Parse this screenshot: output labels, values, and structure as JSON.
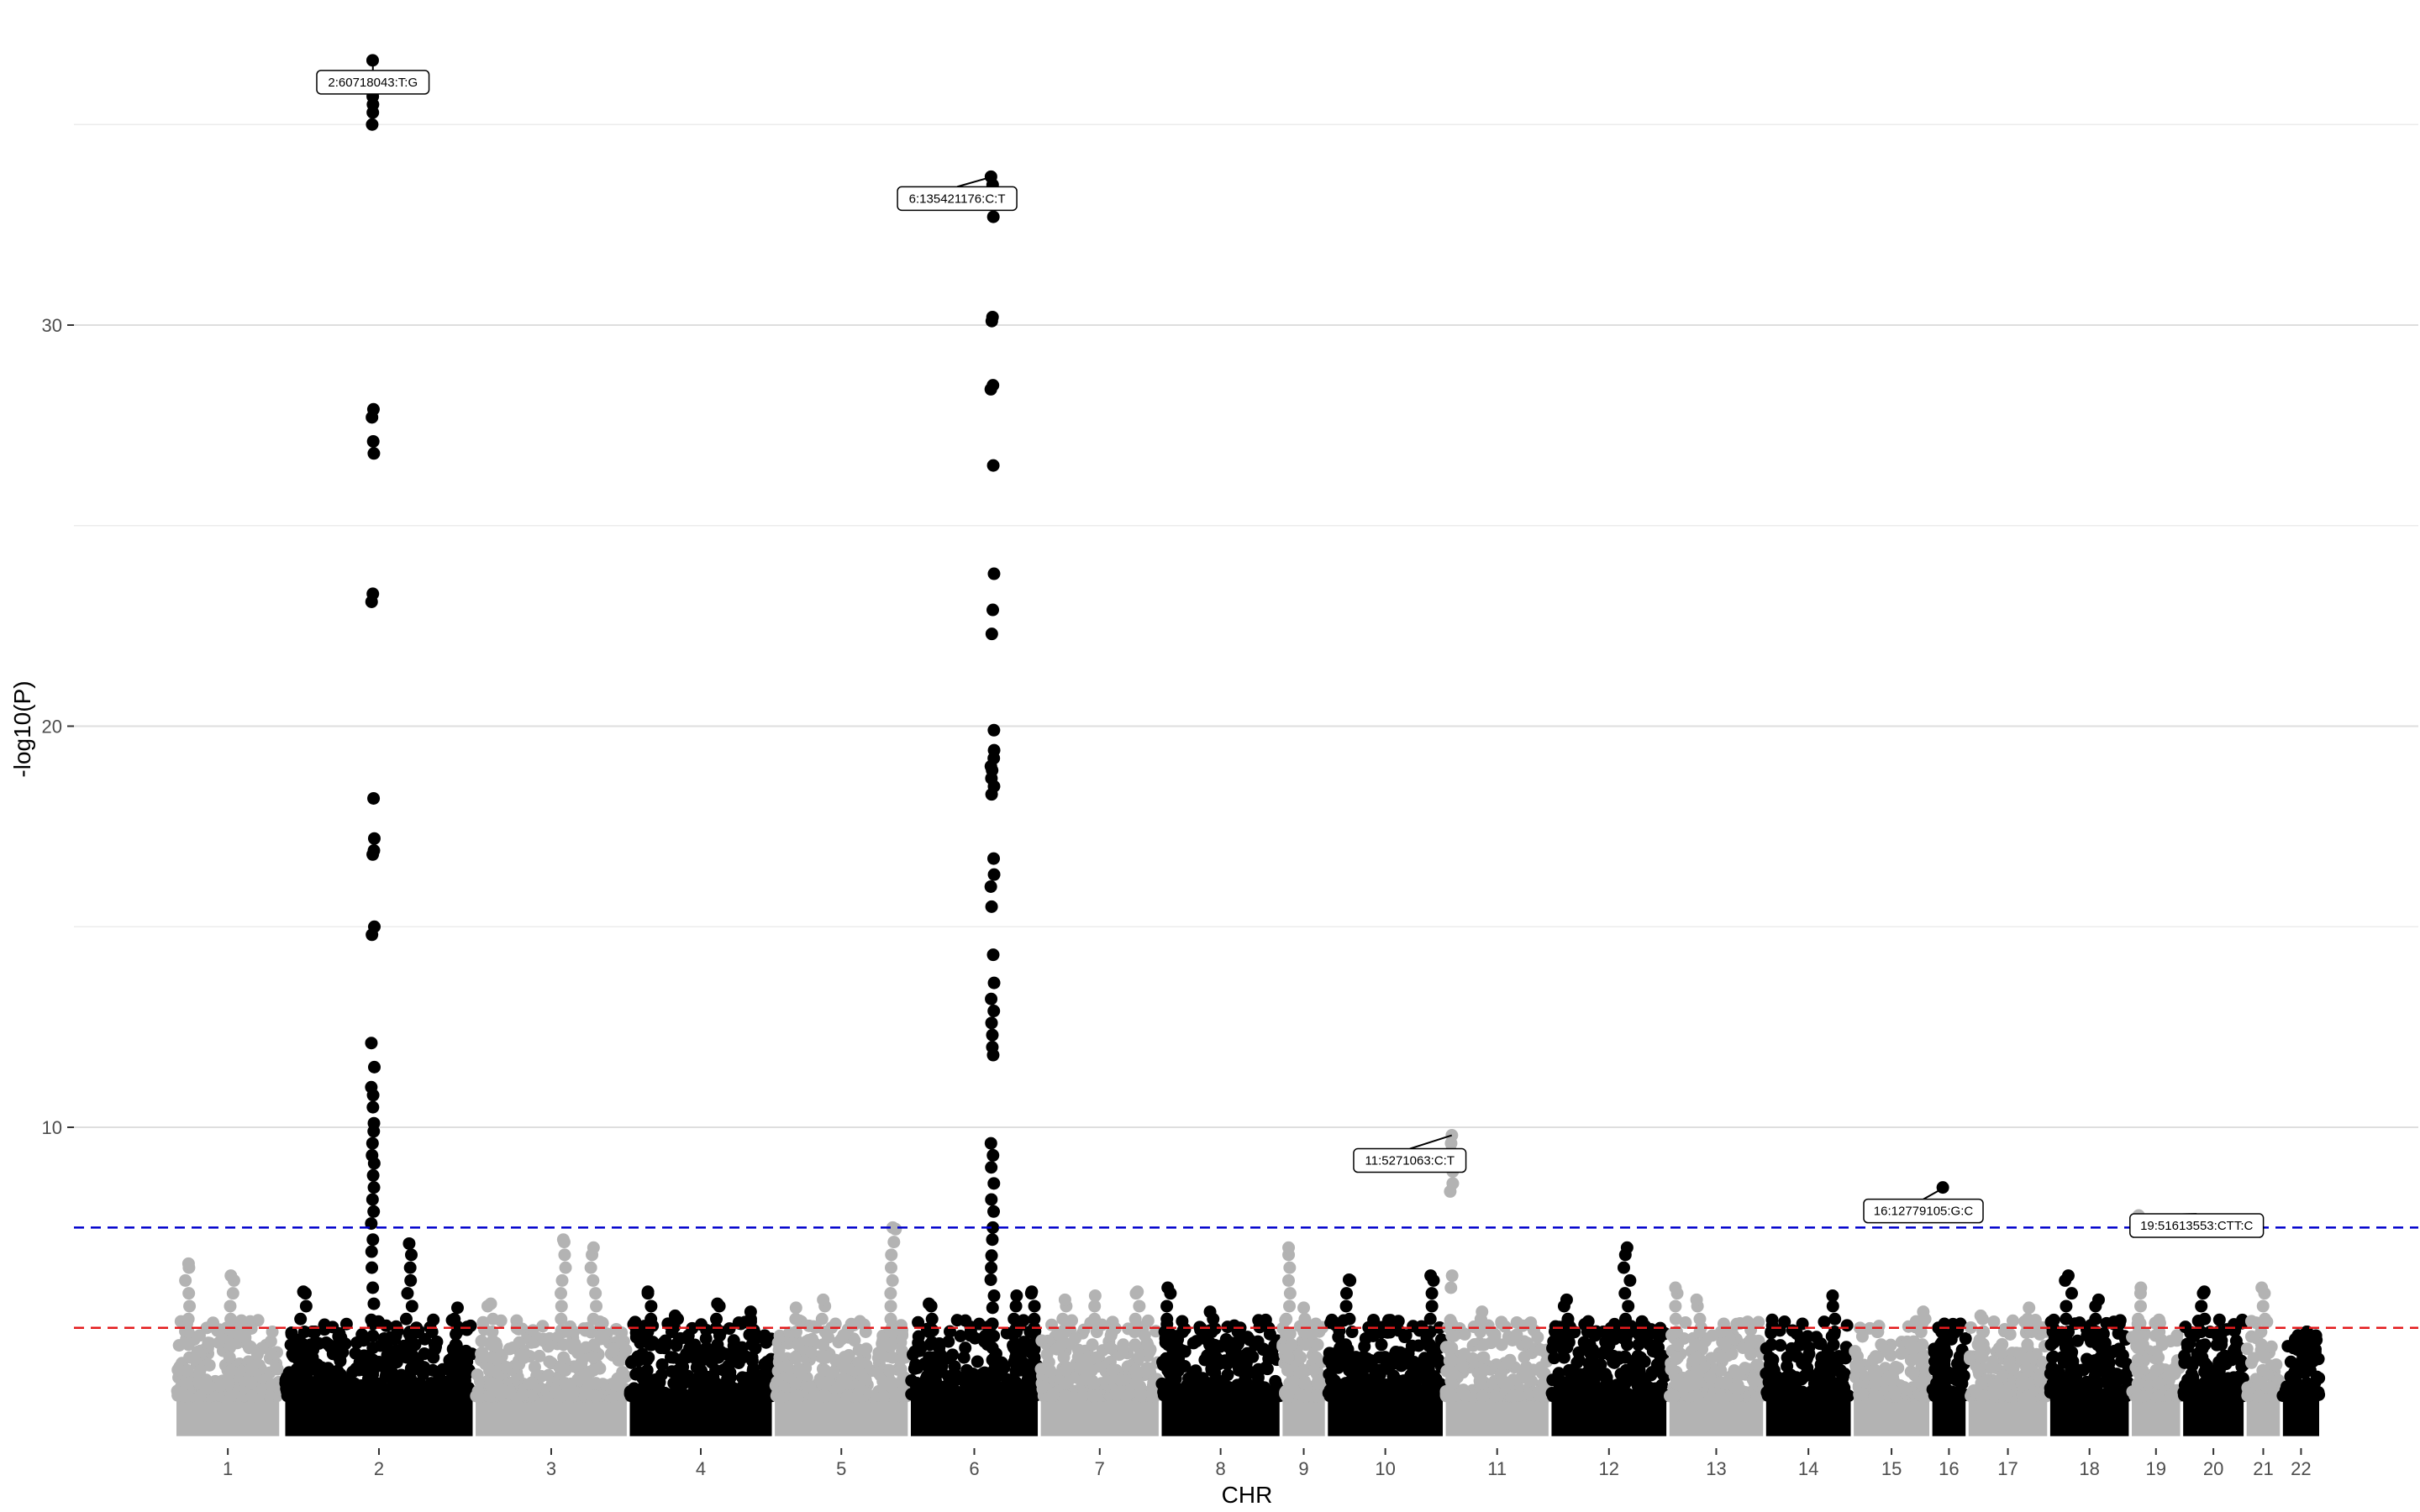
{
  "chart_data": {
    "type": "scatter",
    "subtype": "manhattan",
    "title": "",
    "xlabel": "CHR",
    "ylabel": "-log10(P)",
    "ylim": [
      2.3,
      36.6
    ],
    "yticks": [
      10,
      20,
      30
    ],
    "grid": "horizontal",
    "legend": "none",
    "colors": {
      "odd": "#b3b3b3",
      "even": "#000000",
      "suggestive_line": "#0000cc",
      "genomewide_line": "#e41a1c"
    },
    "suggestive_threshold": 7.5,
    "genomewide_threshold": 5.0,
    "chromosomes": [
      {
        "label": "1",
        "start": 0.0,
        "end": 3.4,
        "max": 6.6,
        "peaks": [
          [
            0.4,
            6.6
          ],
          [
            0.7,
            4.4
          ],
          [
            1.8,
            6.3
          ],
          [
            2.5,
            4.0
          ]
        ]
      },
      {
        "label": "2",
        "start": 3.6,
        "end": 9.8,
        "max": 36.6,
        "peaks": [
          [
            4.2,
            5.9
          ],
          [
            4.5,
            4.9
          ],
          [
            7.7,
            7.1
          ],
          [
            8.5,
            5.2
          ],
          [
            9.3,
            5.5
          ]
        ]
      },
      {
        "label": "3",
        "start": 9.9,
        "end": 14.9,
        "max": 7.2,
        "peaks": [
          [
            10.4,
            5.6
          ],
          [
            12.8,
            7.2
          ],
          [
            13.8,
            7.0
          ]
        ]
      },
      {
        "label": "4",
        "start": 15.0,
        "end": 19.7,
        "max": 5.9,
        "peaks": [
          [
            15.6,
            5.9
          ],
          [
            16.5,
            5.3
          ],
          [
            17.9,
            5.6
          ],
          [
            19.0,
            5.4
          ]
        ]
      },
      {
        "label": "5",
        "start": 19.8,
        "end": 24.2,
        "max": 7.5,
        "peaks": [
          [
            20.5,
            5.5
          ],
          [
            21.4,
            5.7
          ],
          [
            23.7,
            7.5
          ]
        ]
      },
      {
        "label": "6",
        "start": 24.3,
        "end": 28.5,
        "max": 33.7,
        "peaks": [
          [
            24.9,
            5.6
          ],
          [
            26.1,
            4.5
          ],
          [
            27.8,
            5.8
          ],
          [
            28.3,
            5.9
          ]
        ]
      },
      {
        "label": "7",
        "start": 28.6,
        "end": 32.5,
        "max": 5.8,
        "peaks": [
          [
            29.4,
            5.7
          ],
          [
            30.4,
            5.8
          ],
          [
            31.8,
            5.9
          ]
        ]
      },
      {
        "label": "8",
        "start": 32.6,
        "end": 36.5,
        "max": 6.0,
        "peaks": [
          [
            32.8,
            6.0
          ],
          [
            34.2,
            5.4
          ],
          [
            35.2,
            5.0
          ]
        ]
      },
      {
        "label": "9",
        "start": 36.6,
        "end": 38.0,
        "max": 7.0,
        "peaks": [
          [
            36.8,
            7.0
          ],
          [
            37.3,
            5.5
          ],
          [
            37.7,
            5.1
          ]
        ]
      },
      {
        "label": "10",
        "start": 38.1,
        "end": 41.9,
        "max": 6.3,
        "peaks": [
          [
            38.8,
            6.2
          ],
          [
            39.8,
            5.0
          ],
          [
            41.5,
            6.3
          ]
        ]
      },
      {
        "label": "11",
        "start": 42.0,
        "end": 45.4,
        "max": 9.8,
        "peaks": [
          [
            43.2,
            5.4
          ]
        ]
      },
      {
        "label": "12",
        "start": 45.5,
        "end": 49.3,
        "max": 7.0,
        "peaks": [
          [
            46.0,
            5.7
          ],
          [
            46.8,
            4.9
          ],
          [
            48.0,
            7.0
          ],
          [
            48.4,
            5.0
          ]
        ]
      },
      {
        "label": "13",
        "start": 49.4,
        "end": 52.5,
        "max": 6.0,
        "peaks": [
          [
            49.6,
            6.0
          ],
          [
            50.3,
            5.7
          ],
          [
            51.2,
            5.1
          ]
        ]
      },
      {
        "label": "14",
        "start": 52.6,
        "end": 55.4,
        "max": 5.8,
        "peaks": [
          [
            52.8,
            5.2
          ],
          [
            54.8,
            5.8
          ]
        ]
      },
      {
        "label": "15",
        "start": 55.5,
        "end": 58.0,
        "max": 5.4,
        "peaks": [
          [
            56.3,
            4.9
          ],
          [
            57.8,
            5.4
          ]
        ]
      },
      {
        "label": "16",
        "start": 58.1,
        "end": 59.2,
        "max": 8.5,
        "peaks": [
          [
            58.3,
            5.0
          ]
        ]
      },
      {
        "label": "17",
        "start": 59.3,
        "end": 61.9,
        "max": 5.6,
        "peaks": [
          [
            59.7,
            5.3
          ],
          [
            61.3,
            5.5
          ]
        ]
      },
      {
        "label": "18",
        "start": 62.0,
        "end": 64.6,
        "max": 6.3,
        "peaks": [
          [
            62.1,
            5.0
          ],
          [
            62.6,
            6.3
          ],
          [
            63.6,
            5.7
          ]
        ]
      },
      {
        "label": "19",
        "start": 64.7,
        "end": 66.3,
        "max": 7.8,
        "peaks": [
          [
            65.0,
            6.0
          ],
          [
            65.6,
            5.2
          ]
        ]
      },
      {
        "label": "20",
        "start": 66.4,
        "end": 68.4,
        "max": 5.9,
        "peaks": [
          [
            67.1,
            5.9
          ],
          [
            67.6,
            5.2
          ]
        ]
      },
      {
        "label": "21",
        "start": 68.5,
        "end": 69.6,
        "max": 6.0,
        "peaks": [
          [
            69.0,
            6.0
          ]
        ]
      },
      {
        "label": "22",
        "start": 69.7,
        "end": 70.9,
        "max": 4.9,
        "peaks": [
          [
            70.5,
            4.9
          ]
        ]
      }
    ],
    "lead_snps": [
      {
        "label": "2:60718043:T:G",
        "chr": "2",
        "x": 6.5,
        "y": 36.6,
        "column": [
          36.6,
          36.1,
          35.7,
          35.5,
          35.3,
          35.0,
          27.9,
          27.7,
          27.1,
          26.8,
          23.3,
          23.1,
          18.2,
          17.2,
          16.9,
          16.8,
          15.0,
          14.8,
          12.1,
          11.5,
          11.0,
          10.8,
          10.5,
          10.1,
          9.9,
          9.6,
          9.3,
          9.1,
          8.8,
          8.5,
          8.2,
          7.9,
          7.6,
          7.2,
          6.9,
          6.5,
          6.0,
          5.6,
          5.2
        ]
      },
      {
        "label": "6:135421176:C:T",
        "chr": "6",
        "x": 27.0,
        "y": 33.7,
        "column": [
          33.7,
          33.5,
          33.3,
          33.0,
          32.7,
          30.2,
          30.1,
          28.5,
          28.4,
          26.5,
          23.8,
          22.9,
          22.3,
          19.9,
          19.4,
          19.2,
          19.0,
          18.9,
          18.7,
          18.5,
          18.3,
          16.7,
          16.3,
          16.0,
          15.5,
          14.3,
          13.6,
          13.2,
          12.9,
          12.6,
          12.3,
          12.0,
          11.8,
          9.6,
          9.3,
          9.0,
          8.6,
          8.2,
          7.9,
          7.5,
          7.2,
          6.8,
          6.5,
          6.2,
          5.8,
          5.5,
          5.1
        ]
      },
      {
        "label": "11:5271063:C:T",
        "chr": "11",
        "x": 42.2,
        "y": 9.8,
        "column": [
          9.8,
          9.6,
          9.4,
          9.1,
          8.9,
          8.6,
          8.4,
          6.3,
          6.0
        ]
      },
      {
        "label": "16:12779105:G:C",
        "chr": "16",
        "x": 58.5,
        "y": 8.5,
        "column": [
          8.5
        ]
      },
      {
        "label": "19:51613553:CTT:C",
        "chr": "19",
        "x": 64.9,
        "y": 7.8,
        "column": [
          7.8
        ]
      }
    ]
  }
}
